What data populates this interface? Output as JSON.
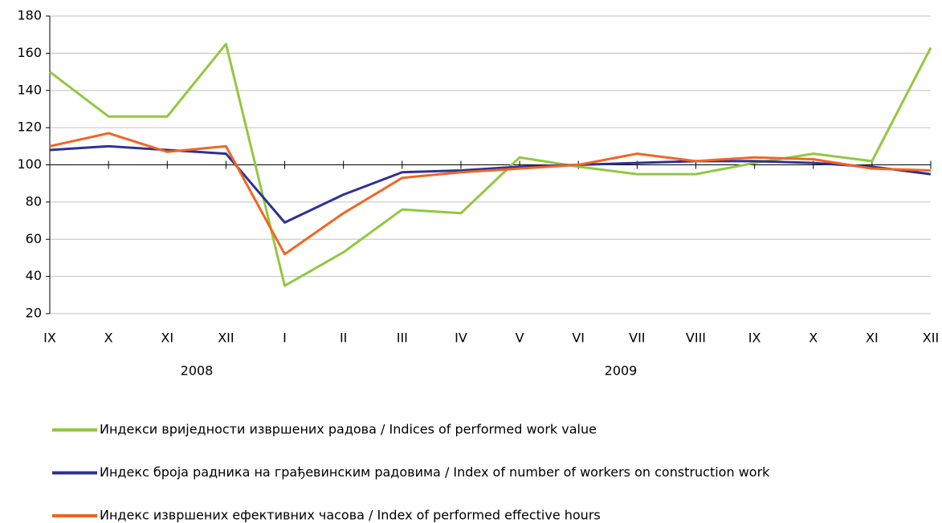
{
  "chart_data": {
    "type": "line",
    "categories": [
      "IX",
      "X",
      "XI",
      "XII",
      "I",
      "II",
      "III",
      "IV",
      "V",
      "VI",
      "VII",
      "VIII",
      "IX",
      "X",
      "XI",
      "XII"
    ],
    "year_labels": [
      "2008",
      "2009"
    ],
    "series": [
      {
        "name": "Индекси вриједности извршених радова / Indices of performed work value",
        "color": "#92c83e",
        "values": [
          150,
          126,
          126,
          165,
          35,
          53,
          76,
          74,
          104,
          99,
          95,
          95,
          101,
          106,
          102,
          163
        ]
      },
      {
        "name": "Индекс броја радника на грађевинским радовима / Index of number of workers on construction work",
        "color": "#2e3192",
        "values": [
          108,
          110,
          108,
          106,
          69,
          84,
          96,
          97,
          99,
          100,
          101,
          102,
          102,
          101,
          99,
          95
        ]
      },
      {
        "name": "Индекс извршених ефективних часова / Index of performed effective hours",
        "color": "#f26522",
        "values": [
          110,
          117,
          107,
          110,
          52,
          74,
          93,
          96,
          98,
          100,
          106,
          102,
          104,
          103,
          98,
          97
        ]
      }
    ],
    "ylim": [
      20,
      180
    ],
    "yticks": [
      20,
      40,
      60,
      80,
      100,
      120,
      140,
      160,
      180
    ],
    "xaxis_crosses": 100,
    "grid": true,
    "legend": "bottom"
  }
}
